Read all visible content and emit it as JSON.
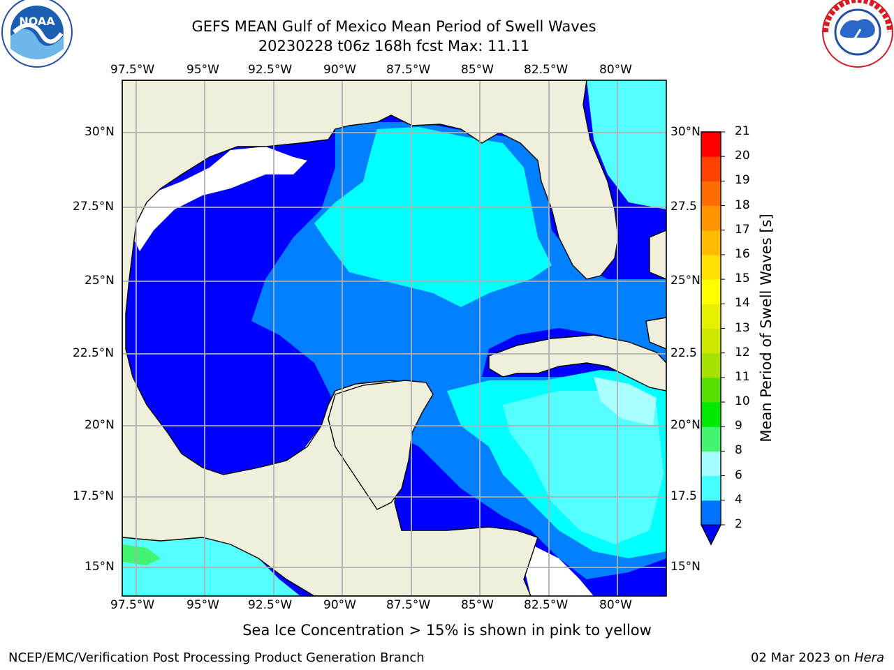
{
  "title": {
    "line1": "GEFS MEAN Gulf of Mexico Mean Period of Swell Waves",
    "line2": "20230228 t06z 168h fcst   Max: 11.11"
  },
  "logos": {
    "left": {
      "name": "NOAA",
      "ring_text": "NATIONAL OCEANIC AND ATMOSPHERIC ADMINISTRATION · U.S. DEPARTMENT OF COMMERCE"
    },
    "right": {
      "name": "NATIONAL WEATHER SERVICE"
    }
  },
  "map": {
    "lon_ticks": [
      "97.5°W",
      "95°W",
      "92.5°W",
      "90°W",
      "87.5°W",
      "85°W",
      "82.5°W",
      "80°W"
    ],
    "lat_ticks_left": [
      "30°N",
      "27.5°N",
      "25°N",
      "22.5°N",
      "20°N",
      "17.5°N",
      "15°N"
    ],
    "lat_ticks_right": [
      "30°N",
      "27.5",
      "25°N",
      "22.5",
      "20°N",
      "17.5",
      "15°N"
    ],
    "land_color": "#efefdc",
    "ocean_colors": {
      "2-4": "#0000ff",
      "4-6": "#0080ff",
      "6-8": "#00ffff",
      "8-9": "#55ffff",
      "9-10": "#aaffff",
      "10-11": "#55ff77"
    }
  },
  "colorbar": {
    "label": "Mean Period of Swell Waves [s]",
    "ticks": [
      "2",
      "4",
      "6",
      "8",
      "9",
      "10",
      "11",
      "12",
      "13",
      "14",
      "15",
      "16",
      "17",
      "18",
      "19",
      "20",
      "21"
    ],
    "colors": [
      "#0073ff",
      "#00efff",
      "#43ffff",
      "#a3ffff",
      "#44f470",
      "#00e900",
      "#57df00",
      "#a6e100",
      "#cde700",
      "#e6f000",
      "#ffff00",
      "#ffe000",
      "#ffbb00",
      "#ff9400",
      "#ff6d00",
      "#ff4100",
      "#ff0000"
    ],
    "extend_color": "#0000ff"
  },
  "footer": {
    "ice_note": "Sea Ice Concentration > 15% is shown in pink to yellow",
    "credit": "NCEP/EMC/Verification Post Processing Product Generation Branch",
    "date": "02 Mar 2023 on ",
    "host": "Hera"
  }
}
